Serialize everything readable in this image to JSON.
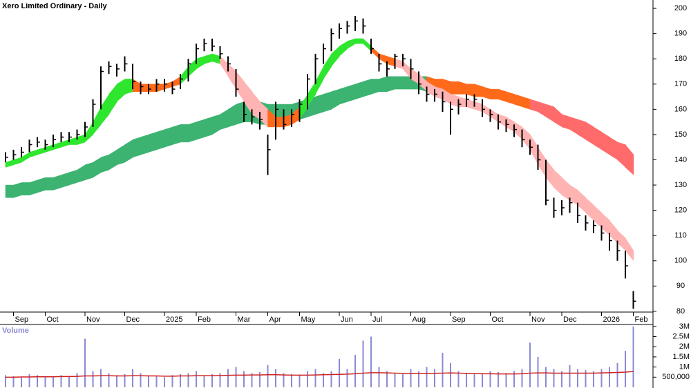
{
  "chart_data": [
    {
      "type": "hlc",
      "title": "Xero Limited Ordinary - Daily",
      "categories": [
        null,
        "Sep",
        null,
        null,
        null,
        "Oct",
        null,
        null,
        null,
        null,
        "Nov",
        null,
        null,
        null,
        null,
        "Dec",
        null,
        null,
        null,
        null,
        "2025",
        null,
        null,
        null,
        "Feb",
        null,
        null,
        null,
        null,
        "Mar",
        null,
        null,
        null,
        "Apr",
        null,
        null,
        null,
        "May",
        null,
        null,
        null,
        null,
        "Jun",
        null,
        null,
        null,
        "Jul",
        null,
        null,
        null,
        null,
        "Aug",
        null,
        null,
        null,
        null,
        "Sep",
        null,
        null,
        null,
        null,
        "Oct",
        null,
        null,
        null,
        null,
        "Nov",
        null,
        null,
        null,
        "Dec",
        null,
        null,
        null,
        null,
        "2026",
        null,
        null,
        null,
        "Feb"
      ],
      "high": [
        143,
        144,
        145,
        148,
        149,
        148,
        150,
        151,
        151,
        152,
        155,
        164,
        177,
        179,
        178,
        181,
        178,
        171,
        170,
        172,
        172,
        171,
        174,
        180,
        186,
        188,
        188,
        185,
        181,
        176,
        163,
        160,
        159,
        150,
        163,
        160,
        160,
        164,
        174,
        182,
        186,
        192,
        194,
        195,
        197,
        196,
        188,
        182,
        179,
        182,
        182,
        180,
        175,
        169,
        168,
        167,
        163,
        164,
        166,
        166,
        164,
        160,
        158,
        156,
        154,
        152,
        148,
        146,
        140,
        125,
        124,
        125,
        123,
        118,
        116,
        114,
        111,
        108,
        104,
        88
      ],
      "low": [
        139,
        140,
        141,
        143,
        145,
        144,
        145,
        147,
        147,
        148,
        149,
        153,
        160,
        174,
        173,
        175,
        168,
        166,
        166,
        167,
        167,
        166,
        168,
        171,
        178,
        183,
        183,
        180,
        175,
        165,
        155,
        154,
        152,
        134,
        148,
        152,
        153,
        155,
        160,
        170,
        178,
        183,
        188,
        190,
        191,
        190,
        182,
        175,
        173,
        176,
        177,
        172,
        166,
        163,
        163,
        159,
        150,
        158,
        161,
        161,
        157,
        155,
        152,
        151,
        149,
        145,
        142,
        136,
        122,
        117,
        118,
        119,
        115,
        112,
        111,
        108,
        104,
        100,
        93,
        81
      ],
      "close": [
        141,
        142,
        143,
        146,
        147,
        146,
        148,
        149,
        149,
        150,
        153,
        162,
        175,
        177,
        176,
        178,
        171,
        169,
        168,
        170,
        170,
        168,
        172,
        178,
        184,
        186,
        185,
        182,
        178,
        168,
        158,
        157,
        156,
        144,
        160,
        154,
        158,
        162,
        172,
        180,
        184,
        190,
        192,
        193,
        195,
        193,
        184,
        178,
        176,
        181,
        180,
        176,
        170,
        166,
        166,
        163,
        160,
        162,
        164,
        164,
        160,
        158,
        155,
        154,
        152,
        148,
        145,
        140,
        124,
        120,
        121,
        123,
        118,
        115,
        114,
        111,
        108,
        104,
        98,
        84
      ],
      "bar_color": "#000000",
      "bands": [
        {
          "lower": [
            125,
            125,
            126,
            126,
            127,
            128,
            128,
            129,
            130,
            131,
            132,
            133,
            135,
            136,
            138,
            139,
            141,
            142,
            143,
            144,
            145,
            146,
            147,
            147,
            148,
            149,
            150,
            152,
            153,
            154,
            155,
            155,
            154,
            154,
            154,
            155,
            155,
            156,
            157,
            158,
            159,
            160,
            162,
            163,
            164,
            165,
            166,
            167,
            167,
            168,
            168,
            168,
            168,
            167,
            167,
            167,
            166,
            166,
            166,
            165,
            165,
            164,
            164,
            163,
            162,
            161,
            160,
            159,
            157,
            155,
            153,
            152,
            150,
            148,
            146,
            144,
            142,
            140,
            137,
            134
          ],
          "upper": [
            130,
            130,
            131,
            131,
            132,
            133,
            133,
            134,
            135,
            136,
            138,
            139,
            141,
            142,
            144,
            146,
            148,
            149,
            150,
            151,
            152,
            153,
            154,
            154,
            155,
            156,
            157,
            158,
            160,
            162,
            163,
            163,
            163,
            162,
            162,
            162,
            162,
            163,
            164,
            165,
            166,
            167,
            168,
            169,
            170,
            171,
            172,
            172,
            173,
            173,
            173,
            173,
            173,
            173,
            172,
            172,
            171,
            171,
            170,
            170,
            169,
            168,
            168,
            167,
            166,
            165,
            164,
            163,
            162,
            161,
            158,
            157,
            156,
            155,
            153,
            151,
            149,
            147,
            146,
            142
          ],
          "colors": [
            "#3cb371",
            "#3cb371",
            "#3cb371",
            "#3cb371",
            "#3cb371",
            "#3cb371",
            "#3cb371",
            "#3cb371",
            "#3cb371",
            "#3cb371",
            "#3cb371",
            "#3cb371",
            "#3cb371",
            "#3cb371",
            "#3cb371",
            "#3cb371",
            "#3cb371",
            "#3cb371",
            "#3cb371",
            "#3cb371",
            "#3cb371",
            "#3cb371",
            "#3cb371",
            "#3cb371",
            "#3cb371",
            "#3cb371",
            "#3cb371",
            "#3cb371",
            "#3cb371",
            "#3cb371",
            "#3cb371",
            "#3cb371",
            "#3cb371",
            "#3cb371",
            "#3cb371",
            "#3cb371",
            "#3cb371",
            "#3cb371",
            "#3cb371",
            "#3cb371",
            "#3cb371",
            "#3cb371",
            "#3cb371",
            "#3cb371",
            "#3cb371",
            "#3cb371",
            "#3cb371",
            "#3cb371",
            "#3cb371",
            "#3cb371",
            "#3cb371",
            "#3cb371",
            "#3cb371",
            "#ff6a1a",
            "#ff6a1a",
            "#ff6a1a",
            "#ff6a1a",
            "#ff6a1a",
            "#ff6a1a",
            "#ff6a1a",
            "#ff6a1a",
            "#ff6a1a",
            "#ff6a1a",
            "#ff6a1a",
            "#ff6a1a",
            "#ff6a1a",
            "#ff6b6b",
            "#ff6b6b",
            "#ff6b6b",
            "#ff6b6b",
            "#ff6b6b",
            "#ff6b6b",
            "#ff6b6b",
            "#ff6b6b",
            "#ff6b6b",
            "#ff6b6b",
            "#ff6b6b",
            "#ff6b6b",
            "#ff6b6b",
            "#ff6b6b"
          ]
        },
        {
          "lower": [
            137,
            138,
            139,
            141,
            142,
            143,
            144,
            145,
            146,
            146,
            147,
            150,
            154,
            158,
            163,
            166,
            167,
            167,
            167,
            167,
            168,
            169,
            170,
            173,
            176,
            178,
            179,
            178,
            173,
            168,
            163,
            158,
            156,
            153,
            153,
            153,
            154,
            156,
            161,
            166,
            172,
            177,
            181,
            184,
            186,
            186,
            183,
            180,
            178,
            177,
            176,
            172,
            170,
            167,
            165,
            164,
            162,
            161,
            161,
            160,
            159,
            157,
            155,
            153,
            151,
            148,
            144,
            138,
            133,
            129,
            126,
            124,
            122,
            119,
            116,
            113,
            110,
            107,
            104,
            100
          ],
          "upper": [
            139,
            140,
            141,
            143,
            144,
            145,
            146,
            147,
            148,
            149,
            150,
            155,
            161,
            166,
            170,
            172,
            172,
            170,
            170,
            170,
            170,
            171,
            173,
            177,
            180,
            181,
            182,
            181,
            178,
            175,
            171,
            167,
            163,
            160,
            157,
            157,
            158,
            161,
            166,
            171,
            177,
            182,
            185,
            187,
            188,
            188,
            185,
            182,
            181,
            180,
            179,
            176,
            174,
            171,
            169,
            168,
            166,
            165,
            164,
            163,
            162,
            160,
            158,
            157,
            155,
            153,
            150,
            145,
            140,
            136,
            133,
            130,
            128,
            125,
            122,
            119,
            116,
            112,
            109,
            104
          ],
          "colors": [
            "#2ee62e",
            "#2ee62e",
            "#2ee62e",
            "#2ee62e",
            "#2ee62e",
            "#2ee62e",
            "#2ee62e",
            "#2ee62e",
            "#2ee62e",
            "#2ee62e",
            "#2ee62e",
            "#2ee62e",
            "#2ee62e",
            "#2ee62e",
            "#2ee62e",
            "#2ee62e",
            "#ff6a1a",
            "#ff6a1a",
            "#ff6a1a",
            "#ff6a1a",
            "#ff6a1a",
            "#ff6a1a",
            "#2ee62e",
            "#2ee62e",
            "#2ee62e",
            "#2ee62e",
            "#2ee62e",
            "#ffb3b3",
            "#ffb3b3",
            "#ffb3b3",
            "#ffb3b3",
            "#ffb3b3",
            "#ffb3b3",
            "#ff6a1a",
            "#ff6a1a",
            "#ff6a1a",
            "#ff6a1a",
            "#2ee62e",
            "#2ee62e",
            "#2ee62e",
            "#2ee62e",
            "#2ee62e",
            "#2ee62e",
            "#2ee62e",
            "#2ee62e",
            "#2ee62e",
            "#ff6a1a",
            "#ff6a1a",
            "#ff6a1a",
            "#ffb3b3",
            "#ffb3b3",
            "#ffb3b3",
            "#ffb3b3",
            "#ffb3b3",
            "#ffb3b3",
            "#ffb3b3",
            "#ffb3b3",
            "#ffb3b3",
            "#ffb3b3",
            "#ffb3b3",
            "#ffb3b3",
            "#ffb3b3",
            "#ffb3b3",
            "#ffb3b3",
            "#ffb3b3",
            "#ffb3b3",
            "#ffb3b3",
            "#ffb3b3",
            "#ffb3b3",
            "#ffb3b3",
            "#ffb3b3",
            "#ffb3b3",
            "#ffb3b3",
            "#ffb3b3",
            "#ffb3b3",
            "#ffb3b3",
            "#ffb3b3",
            "#ffb3b3",
            "#ffb3b3",
            "#ffb3b3"
          ]
        }
      ],
      "ylim": [
        79.7,
        203.3
      ],
      "yticks": [
        80,
        90,
        100,
        110,
        120,
        130,
        140,
        150,
        160,
        170,
        180,
        190,
        200
      ]
    },
    {
      "type": "bar",
      "title": "Volume",
      "values": [
        600000,
        550000,
        500000,
        650000,
        600000,
        550000,
        500000,
        600000,
        550000,
        700000,
        2400000,
        800000,
        900000,
        700000,
        600000,
        650000,
        900000,
        700000,
        600000,
        550000,
        500000,
        600000,
        650000,
        700000,
        800000,
        600000,
        650000,
        700000,
        900000,
        1000000,
        800000,
        700000,
        750000,
        1100000,
        900000,
        700000,
        650000,
        600000,
        800000,
        900000,
        700000,
        800000,
        1400000,
        900000,
        1600000,
        2300000,
        2500000,
        1000000,
        800000,
        700000,
        650000,
        900000,
        800000,
        1000000,
        900000,
        1700000,
        1200000,
        800000,
        700000,
        650000,
        700000,
        800000,
        750000,
        700000,
        800000,
        900000,
        2200000,
        1500000,
        1000000,
        900000,
        800000,
        1100000,
        900000,
        850000,
        800000,
        900000,
        1000000,
        1200000,
        1800000,
        3000000
      ],
      "color": "#8a8ad6",
      "average": [
        500000,
        500000,
        510000,
        510000,
        520000,
        520000,
        520000,
        530000,
        530000,
        540000,
        560000,
        560000,
        570000,
        570000,
        560000,
        560000,
        570000,
        570000,
        560000,
        560000,
        550000,
        550000,
        560000,
        560000,
        570000,
        570000,
        570000,
        580000,
        590000,
        600000,
        600000,
        610000,
        610000,
        620000,
        620000,
        610000,
        600000,
        600000,
        600000,
        610000,
        620000,
        630000,
        640000,
        650000,
        670000,
        700000,
        720000,
        720000,
        710000,
        700000,
        690000,
        690000,
        680000,
        690000,
        690000,
        700000,
        710000,
        700000,
        690000,
        680000,
        670000,
        670000,
        660000,
        660000,
        660000,
        670000,
        700000,
        710000,
        710000,
        700000,
        700000,
        700000,
        700000,
        700000,
        700000,
        710000,
        720000,
        730000,
        750000,
        780000
      ],
      "average_color": "#d02020",
      "ylim": [
        0,
        3200000
      ],
      "yticks": [
        {
          "value": 500000,
          "label": "500,000"
        },
        {
          "value": 1000000,
          "label": "1M"
        },
        {
          "value": 1500000,
          "label": "1.5M"
        },
        {
          "value": 2000000,
          "label": "2M"
        },
        {
          "value": 2500000,
          "label": "2.5M"
        },
        {
          "value": 3000000,
          "label": "3M"
        }
      ]
    }
  ]
}
